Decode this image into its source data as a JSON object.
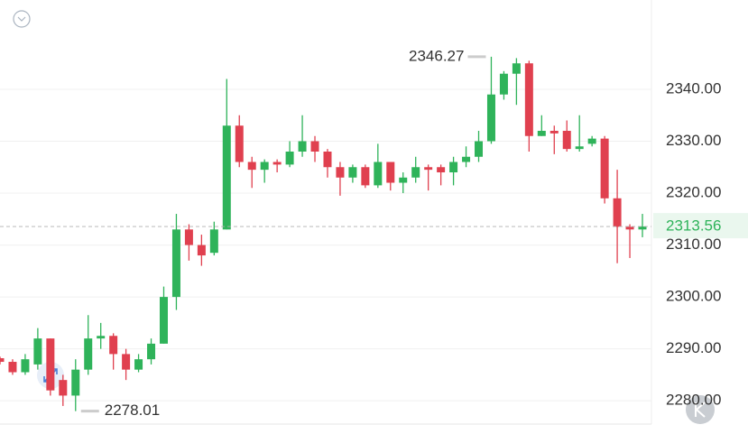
{
  "chart_data": {
    "type": "candlestick",
    "ylim": [
      2273.6,
      2357.2
    ],
    "yticks": [
      {
        "value": 2340,
        "label": "2340.00"
      },
      {
        "value": 2330,
        "label": "2330.00"
      },
      {
        "value": 2320,
        "label": "2320.00"
      },
      {
        "value": 2310,
        "label": "2310.00"
      },
      {
        "value": 2300,
        "label": "2300.00"
      },
      {
        "value": 2290,
        "label": "2290.00"
      },
      {
        "value": 2280,
        "label": "2280.00"
      }
    ],
    "grid": true,
    "up_color": "#2fb35a",
    "down_color": "#e0404f",
    "open": [
      2288.2,
      2287.5,
      2285.5,
      2287,
      2292,
      2284,
      2281,
      2286,
      2292,
      2292.5,
      2289,
      2286,
      2288,
      2291,
      2300,
      2313,
      2310,
      2308.5,
      2313,
      2333,
      2326,
      2324.5,
      2326,
      2325.5,
      2328,
      2330,
      2328,
      2325,
      2323,
      2325,
      2321.5,
      2326,
      2322,
      2323,
      2325,
      2325,
      2324,
      2326,
      2327,
      2330,
      2339,
      2343,
      2345,
      2331,
      2332,
      2332,
      2328.5,
      2329.5,
      2330.5,
      2319,
      2313.5,
      2313
    ],
    "high": [
      2288.5,
      2288,
      2289,
      2294,
      2292,
      2285,
      2288,
      2296.5,
      2295,
      2293,
      2290,
      2289,
      2292,
      2302,
      2316,
      2314,
      2312,
      2314.5,
      2342,
      2335,
      2327,
      2326.5,
      2326.5,
      2330,
      2335,
      2331,
      2328.5,
      2326,
      2325.5,
      2325.5,
      2329.5,
      2326,
      2324,
      2327,
      2325.5,
      2325.5,
      2327,
      2329,
      2332,
      2346.27,
      2343.5,
      2346,
      2345.5,
      2335,
      2333,
      2334,
      2335,
      2331,
      2331,
      2324.5,
      2314,
      2316
    ],
    "low": [
      2287,
      2285,
      2285,
      2286,
      2281,
      2279,
      2278.01,
      2285,
      2290,
      2286,
      2284,
      2285.5,
      2287,
      2291,
      2297.5,
      2307,
      2306,
      2308,
      2313,
      2325,
      2321,
      2322,
      2324,
      2325,
      2327,
      2326,
      2323,
      2319.5,
      2322,
      2321,
      2321,
      2320.5,
      2320,
      2322,
      2320.5,
      2321.5,
      2321.5,
      2325,
      2326,
      2329.5,
      2338,
      2337,
      2328,
      2331,
      2327.5,
      2328,
      2328,
      2329,
      2318,
      2306.5,
      2307.5,
      2311.5
    ],
    "close": [
      2287.5,
      2285.5,
      2288,
      2292,
      2282,
      2281,
      2286,
      2292,
      2292.5,
      2289,
      2286,
      2288,
      2291,
      2300,
      2313,
      2310,
      2308,
      2313,
      2333,
      2326,
      2324.5,
      2326,
      2325.5,
      2328,
      2330,
      2328,
      2325,
      2323,
      2325,
      2321.5,
      2326,
      2322,
      2323,
      2325,
      2324.5,
      2324,
      2326,
      2327,
      2330,
      2339,
      2343,
      2345,
      2331,
      2332,
      2331.5,
      2328.5,
      2329,
      2330.5,
      2319,
      2313.5,
      2313,
      2313.56
    ],
    "high_annotation": 2346.27,
    "low_annotation": 2278.01,
    "current_price": 2313.56
  }
}
